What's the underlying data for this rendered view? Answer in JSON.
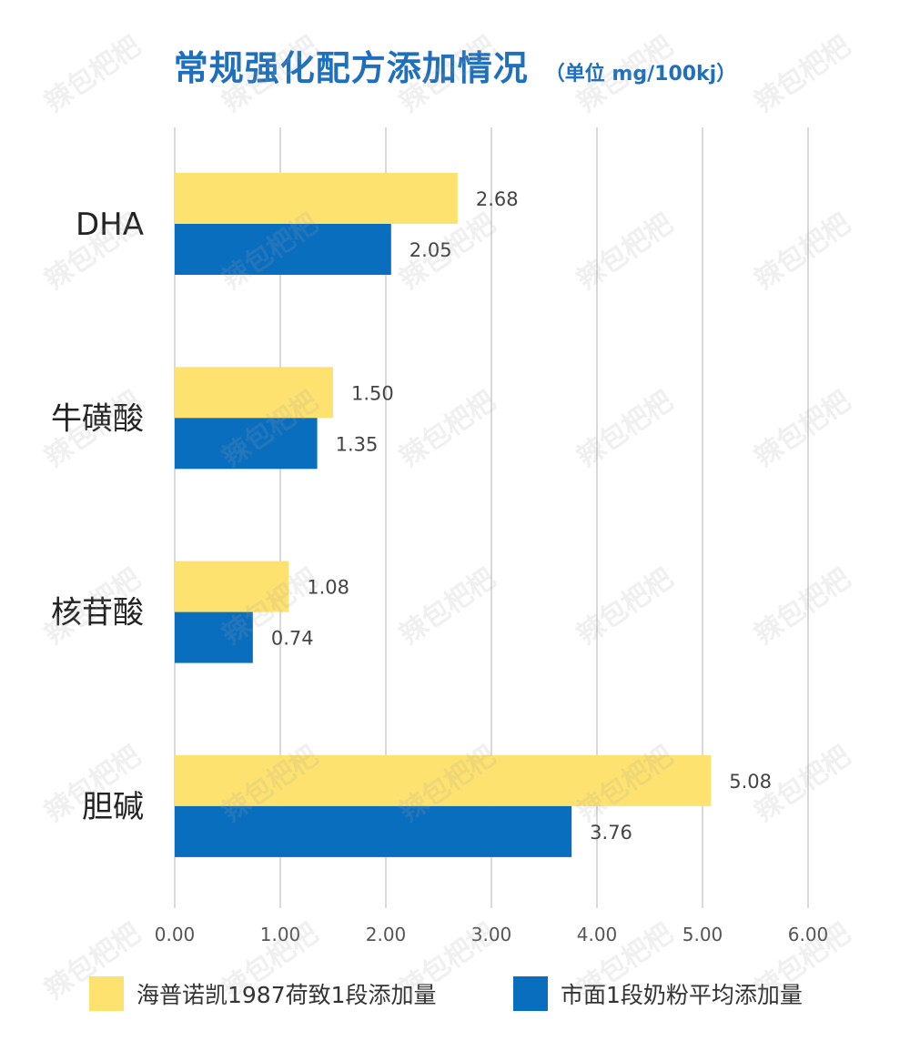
{
  "title": "常规强化配方添加情况",
  "unit": "（单位 mg/100kj）",
  "colors": {
    "series1": "#FEE26F",
    "series2": "#0A6EBE",
    "grid": "#D9D9D9",
    "title": "#1F6FBF"
  },
  "chart_data": {
    "type": "bar",
    "orientation": "horizontal",
    "title": "常规强化配方添加情况",
    "subtitle": "（单位 mg/100kj）",
    "categories": [
      "DHA",
      "牛磺酸",
      "核苷酸",
      "胆碱"
    ],
    "series": [
      {
        "name": "海普诺凯1987荷致1段添加量",
        "values": [
          2.68,
          1.5,
          1.08,
          5.08
        ],
        "labels": [
          "2.68",
          "1.50",
          "1.08",
          "5.08"
        ]
      },
      {
        "name": "市面1段奶粉平均添加量",
        "values": [
          2.05,
          1.35,
          0.74,
          3.76
        ],
        "labels": [
          "2.05",
          "1.35",
          "0.74",
          "3.76"
        ]
      }
    ],
    "xlim": [
      0,
      6
    ],
    "xticks": [
      "0.00",
      "1.00",
      "2.00",
      "3.00",
      "4.00",
      "5.00",
      "6.00"
    ],
    "grid": true,
    "legend": "bottom"
  },
  "watermark": "辣包杷杷"
}
